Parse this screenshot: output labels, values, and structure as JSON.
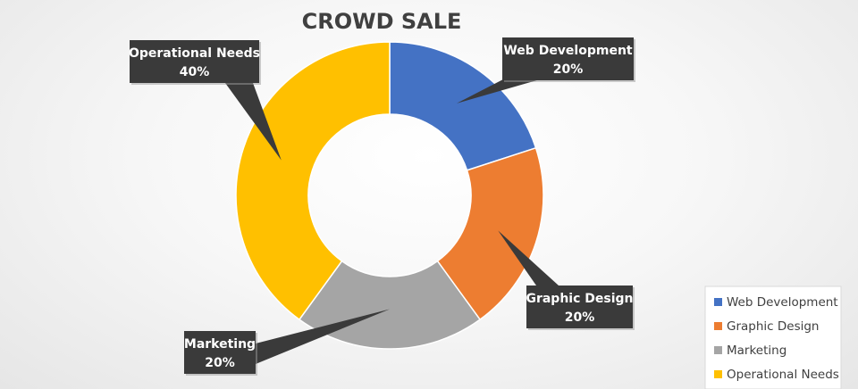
{
  "chart_data": {
    "type": "pie",
    "variant": "doughnut",
    "title": "CROWD SALE",
    "categories": [
      "Web Development",
      "Graphic Design",
      "Marketing",
      "Operational Needs"
    ],
    "values": [
      20,
      20,
      20,
      40
    ],
    "colors": [
      "#4472c4",
      "#ed7d31",
      "#a5a5a5",
      "#ffc000"
    ],
    "data_labels": [
      "20%",
      "20%",
      "20%",
      "40%"
    ],
    "legend_position": "bottom-right",
    "label_style": "dark callout boxes"
  }
}
